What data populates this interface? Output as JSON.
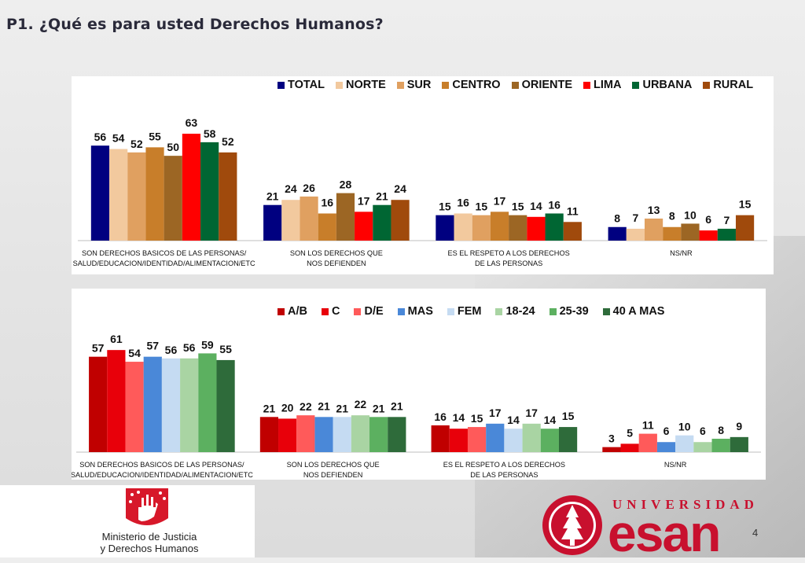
{
  "title": "P1. ¿Qué es para usted Derechos Humanos?",
  "page_number": "4",
  "logos": {
    "minjus_line1": "Ministerio de Justicia",
    "minjus_line2": "y Derechos Humanos",
    "esan_top": "UNIVERSIDAD",
    "esan_word": "esan"
  },
  "chart_data": [
    {
      "type": "bar",
      "categories": [
        [
          "SON DERECHOS BASICOS DE LAS PERSONAS/",
          "SALUD/EDUCACION/IDENTIDAD/ALIMENTACION/ETC"
        ],
        [
          "SON LOS DERECHOS QUE",
          "NOS DEFIENDEN"
        ],
        [
          "ES EL RESPETO A LOS DERECHOS",
          "DE LAS PERSONAS"
        ],
        [
          "NS/NR"
        ]
      ],
      "ylim": [
        0,
        70
      ],
      "series": [
        {
          "name": "TOTAL",
          "color": "#000080",
          "values": [
            56,
            21,
            15,
            8
          ]
        },
        {
          "name": "NORTE",
          "color": "#F2C99E",
          "values": [
            54,
            24,
            16,
            7
          ]
        },
        {
          "name": "SUR",
          "color": "#E0A060",
          "values": [
            52,
            26,
            15,
            13
          ]
        },
        {
          "name": "CENTRO",
          "color": "#C87E2A",
          "values": [
            55,
            16,
            17,
            8
          ]
        },
        {
          "name": "ORIENTE",
          "color": "#9C6624",
          "values": [
            50,
            28,
            15,
            10
          ]
        },
        {
          "name": "LIMA",
          "color": "#FF0000",
          "values": [
            63,
            17,
            14,
            6
          ]
        },
        {
          "name": "URBANA",
          "color": "#006633",
          "values": [
            58,
            21,
            16,
            7
          ]
        },
        {
          "name": "RURAL",
          "color": "#A04A0C",
          "values": [
            52,
            24,
            11,
            15
          ]
        }
      ]
    },
    {
      "type": "bar",
      "categories": [
        [
          "SON DERECHOS BASICOS DE LAS PERSONAS/",
          "SALUD/EDUCACION/IDENTIDAD/ALIMENTACION/ETC"
        ],
        [
          "SON LOS DERECHOS QUE",
          "NOS DEFIENDEN"
        ],
        [
          "ES EL RESPETO A LOS DERECHOS",
          "DE LAS PERSONAS"
        ],
        [
          "NS/NR"
        ]
      ],
      "ylim": [
        0,
        70
      ],
      "series": [
        {
          "name": "A/B",
          "color": "#C00000",
          "values": [
            57,
            21,
            16,
            3
          ]
        },
        {
          "name": "C",
          "color": "#E8000A",
          "values": [
            61,
            20,
            14,
            5
          ]
        },
        {
          "name": "D/E",
          "color": "#FF5A5A",
          "values": [
            54,
            22,
            15,
            11
          ]
        },
        {
          "name": "MAS",
          "color": "#4A88D8",
          "values": [
            57,
            21,
            17,
            6
          ]
        },
        {
          "name": "FEM",
          "color": "#C5DBF2",
          "values": [
            56,
            21,
            14,
            10
          ]
        },
        {
          "name": "18-24",
          "color": "#A9D4A3",
          "values": [
            56,
            22,
            17,
            6
          ]
        },
        {
          "name": "25-39",
          "color": "#5CB060",
          "values": [
            59,
            21,
            14,
            8
          ]
        },
        {
          "name": "40 A MAS",
          "color": "#2E6B3A",
          "values": [
            55,
            21,
            15,
            9
          ]
        }
      ]
    }
  ]
}
